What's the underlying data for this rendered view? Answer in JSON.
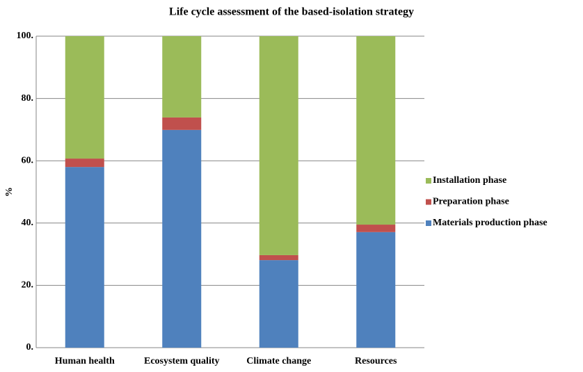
{
  "chart_data": {
    "type": "stacked_bar",
    "title": "Life cycle assessment of the based-isolation strategy",
    "y_label": "%",
    "categories": [
      "Human health",
      "Ecosystem quality",
      "Climate change",
      "Resources"
    ],
    "series": [
      {
        "name": "Materials production phase",
        "color": "#4f81bd",
        "values": [
          58.0,
          69.9,
          28.1,
          37.1
        ]
      },
      {
        "name": "Preparation phase",
        "color": "#c0504d",
        "values": [
          2.7,
          4.0,
          1.6,
          2.4
        ]
      },
      {
        "name": "Installation phase",
        "color": "#9bbb59",
        "values": [
          39.3,
          26.1,
          70.3,
          60.5
        ]
      }
    ],
    "ylim": [
      0,
      100
    ],
    "yticks": [
      {
        "value": 0,
        "label": "0."
      },
      {
        "value": 20,
        "label": "20."
      },
      {
        "value": 40,
        "label": "40."
      },
      {
        "value": 60,
        "label": "60."
      },
      {
        "value": 80,
        "label": "80."
      },
      {
        "value": 100,
        "label": "100."
      }
    ],
    "grid": true,
    "legend": "right"
  }
}
